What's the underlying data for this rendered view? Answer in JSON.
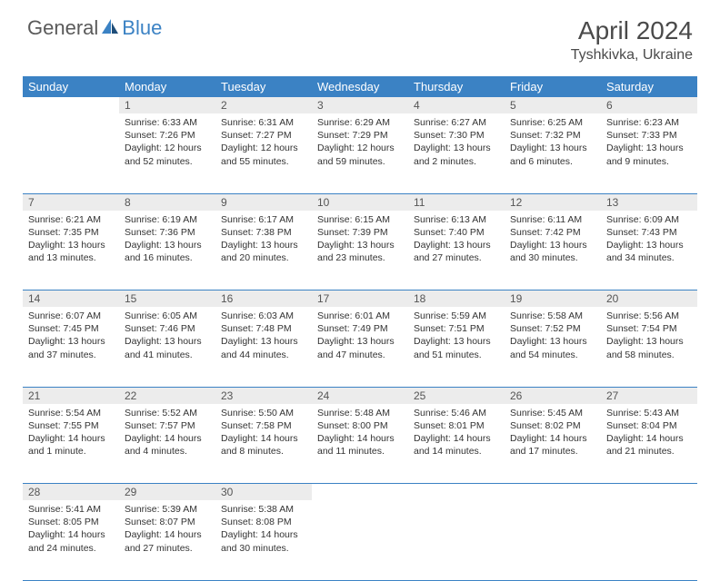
{
  "brand": {
    "general": "General",
    "blue": "Blue"
  },
  "title": "April 2024",
  "location": "Tyshkivka, Ukraine",
  "colors": {
    "header_bg": "#3b82c4",
    "header_fg": "#ffffff",
    "daynum_bg": "#ececec",
    "daynum_fg": "#555555",
    "divider": "#3b82c4",
    "text": "#333333",
    "title_fg": "#4a4a4a",
    "logo_gray": "#5a5a5a",
    "logo_blue": "#3b82c4"
  },
  "weekdays": [
    "Sunday",
    "Monday",
    "Tuesday",
    "Wednesday",
    "Thursday",
    "Friday",
    "Saturday"
  ],
  "weeks": [
    [
      null,
      {
        "n": "1",
        "sr": "6:33 AM",
        "ss": "7:26 PM",
        "dl": "12 hours and 52 minutes."
      },
      {
        "n": "2",
        "sr": "6:31 AM",
        "ss": "7:27 PM",
        "dl": "12 hours and 55 minutes."
      },
      {
        "n": "3",
        "sr": "6:29 AM",
        "ss": "7:29 PM",
        "dl": "12 hours and 59 minutes."
      },
      {
        "n": "4",
        "sr": "6:27 AM",
        "ss": "7:30 PM",
        "dl": "13 hours and 2 minutes."
      },
      {
        "n": "5",
        "sr": "6:25 AM",
        "ss": "7:32 PM",
        "dl": "13 hours and 6 minutes."
      },
      {
        "n": "6",
        "sr": "6:23 AM",
        "ss": "7:33 PM",
        "dl": "13 hours and 9 minutes."
      }
    ],
    [
      {
        "n": "7",
        "sr": "6:21 AM",
        "ss": "7:35 PM",
        "dl": "13 hours and 13 minutes."
      },
      {
        "n": "8",
        "sr": "6:19 AM",
        "ss": "7:36 PM",
        "dl": "13 hours and 16 minutes."
      },
      {
        "n": "9",
        "sr": "6:17 AM",
        "ss": "7:38 PM",
        "dl": "13 hours and 20 minutes."
      },
      {
        "n": "10",
        "sr": "6:15 AM",
        "ss": "7:39 PM",
        "dl": "13 hours and 23 minutes."
      },
      {
        "n": "11",
        "sr": "6:13 AM",
        "ss": "7:40 PM",
        "dl": "13 hours and 27 minutes."
      },
      {
        "n": "12",
        "sr": "6:11 AM",
        "ss": "7:42 PM",
        "dl": "13 hours and 30 minutes."
      },
      {
        "n": "13",
        "sr": "6:09 AM",
        "ss": "7:43 PM",
        "dl": "13 hours and 34 minutes."
      }
    ],
    [
      {
        "n": "14",
        "sr": "6:07 AM",
        "ss": "7:45 PM",
        "dl": "13 hours and 37 minutes."
      },
      {
        "n": "15",
        "sr": "6:05 AM",
        "ss": "7:46 PM",
        "dl": "13 hours and 41 minutes."
      },
      {
        "n": "16",
        "sr": "6:03 AM",
        "ss": "7:48 PM",
        "dl": "13 hours and 44 minutes."
      },
      {
        "n": "17",
        "sr": "6:01 AM",
        "ss": "7:49 PM",
        "dl": "13 hours and 47 minutes."
      },
      {
        "n": "18",
        "sr": "5:59 AM",
        "ss": "7:51 PM",
        "dl": "13 hours and 51 minutes."
      },
      {
        "n": "19",
        "sr": "5:58 AM",
        "ss": "7:52 PM",
        "dl": "13 hours and 54 minutes."
      },
      {
        "n": "20",
        "sr": "5:56 AM",
        "ss": "7:54 PM",
        "dl": "13 hours and 58 minutes."
      }
    ],
    [
      {
        "n": "21",
        "sr": "5:54 AM",
        "ss": "7:55 PM",
        "dl": "14 hours and 1 minute."
      },
      {
        "n": "22",
        "sr": "5:52 AM",
        "ss": "7:57 PM",
        "dl": "14 hours and 4 minutes."
      },
      {
        "n": "23",
        "sr": "5:50 AM",
        "ss": "7:58 PM",
        "dl": "14 hours and 8 minutes."
      },
      {
        "n": "24",
        "sr": "5:48 AM",
        "ss": "8:00 PM",
        "dl": "14 hours and 11 minutes."
      },
      {
        "n": "25",
        "sr": "5:46 AM",
        "ss": "8:01 PM",
        "dl": "14 hours and 14 minutes."
      },
      {
        "n": "26",
        "sr": "5:45 AM",
        "ss": "8:02 PM",
        "dl": "14 hours and 17 minutes."
      },
      {
        "n": "27",
        "sr": "5:43 AM",
        "ss": "8:04 PM",
        "dl": "14 hours and 21 minutes."
      }
    ],
    [
      {
        "n": "28",
        "sr": "5:41 AM",
        "ss": "8:05 PM",
        "dl": "14 hours and 24 minutes."
      },
      {
        "n": "29",
        "sr": "5:39 AM",
        "ss": "8:07 PM",
        "dl": "14 hours and 27 minutes."
      },
      {
        "n": "30",
        "sr": "5:38 AM",
        "ss": "8:08 PM",
        "dl": "14 hours and 30 minutes."
      },
      null,
      null,
      null,
      null
    ]
  ],
  "labels": {
    "sunrise": "Sunrise:",
    "sunset": "Sunset:",
    "daylight": "Daylight:"
  }
}
